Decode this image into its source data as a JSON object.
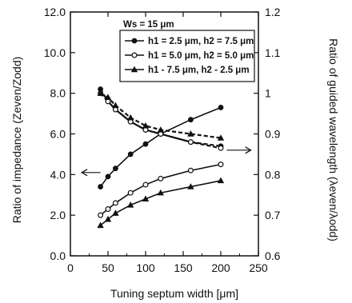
{
  "chart_data": {
    "type": "line",
    "xlabel": "Tuning septum width  [μm]",
    "ylabel_left": "Ratio of impedance (Zeven/Zodd)",
    "ylabel_right": "Ratio of guided wavelength (λeven/λodd)",
    "xlim": [
      0,
      250
    ],
    "ylim_left": [
      0.0,
      12.0
    ],
    "ylim_right": [
      0.6,
      1.2
    ],
    "x_ticks": [
      0,
      50,
      100,
      150,
      200,
      250
    ],
    "x_tick_labels": [
      "0",
      "50",
      "100",
      "150",
      "200",
      "250"
    ],
    "y_left_ticks": [
      0,
      2,
      4,
      6,
      8,
      10,
      12
    ],
    "y_left_tick_labels": [
      "0.0",
      "2.0",
      "4.0",
      "6.0",
      "8.0",
      "10.0",
      "12.0"
    ],
    "y_right_ticks": [
      0.6,
      0.7,
      0.8,
      0.9,
      1.0,
      1.1,
      1.2
    ],
    "y_right_tick_labels": [
      "0.6",
      "0.7",
      "0.8",
      "0.9",
      "1",
      "1.1",
      "1.2"
    ],
    "grid": false,
    "legend_title": "Ws = 15 μm",
    "legend_position": "top-right",
    "series": [
      {
        "name": "h1 = 2.5 μm, h2 = 7.5 μm",
        "marker": "filled-circle",
        "axis": "left",
        "style": "solid",
        "x": [
          40,
          50,
          60,
          80,
          100,
          120,
          160,
          200
        ],
        "y": [
          3.4,
          3.9,
          4.3,
          5.0,
          5.5,
          6.0,
          6.7,
          7.3
        ]
      },
      {
        "name": "h1 = 5.0 μm, h2 = 5.0 μm",
        "marker": "open-circle",
        "axis": "left",
        "style": "solid",
        "x": [
          40,
          50,
          60,
          80,
          100,
          120,
          160,
          200
        ],
        "y": [
          2.0,
          2.3,
          2.6,
          3.1,
          3.5,
          3.8,
          4.2,
          4.5
        ]
      },
      {
        "name": "h1 - 7.5 μm, h2 - 2.5 μm",
        "marker": "filled-triangle",
        "axis": "left",
        "style": "solid",
        "x": [
          40,
          50,
          60,
          80,
          100,
          120,
          160,
          200
        ],
        "y": [
          1.5,
          1.8,
          2.1,
          2.5,
          2.8,
          3.1,
          3.4,
          3.7
        ]
      },
      {
        "marker": "filled-circle",
        "axis": "right",
        "style": "dashed",
        "x": [
          40,
          50,
          60,
          80,
          100,
          120,
          160,
          200
        ],
        "y": [
          1.01,
          0.98,
          0.96,
          0.93,
          0.91,
          0.9,
          0.88,
          0.87
        ]
      },
      {
        "marker": "open-circle",
        "axis": "right",
        "style": "dashed",
        "x": [
          40,
          50,
          60,
          80,
          100,
          120,
          160,
          200
        ],
        "y": [
          1.0,
          0.98,
          0.96,
          0.93,
          0.91,
          0.9,
          0.88,
          0.865
        ]
      },
      {
        "marker": "filled-triangle",
        "axis": "right",
        "style": "dashed",
        "x": [
          40,
          50,
          60,
          80,
          100,
          120,
          160,
          200
        ],
        "y": [
          1.0,
          0.99,
          0.97,
          0.94,
          0.92,
          0.91,
          0.9,
          0.89
        ]
      }
    ],
    "annotations": [
      {
        "type": "arrow",
        "direction": "left",
        "meaning": "left axis curves"
      },
      {
        "type": "arrow",
        "direction": "right",
        "meaning": "right axis curves"
      }
    ],
    "colors": {
      "ink": "#111111",
      "background": "#ffffff"
    }
  }
}
